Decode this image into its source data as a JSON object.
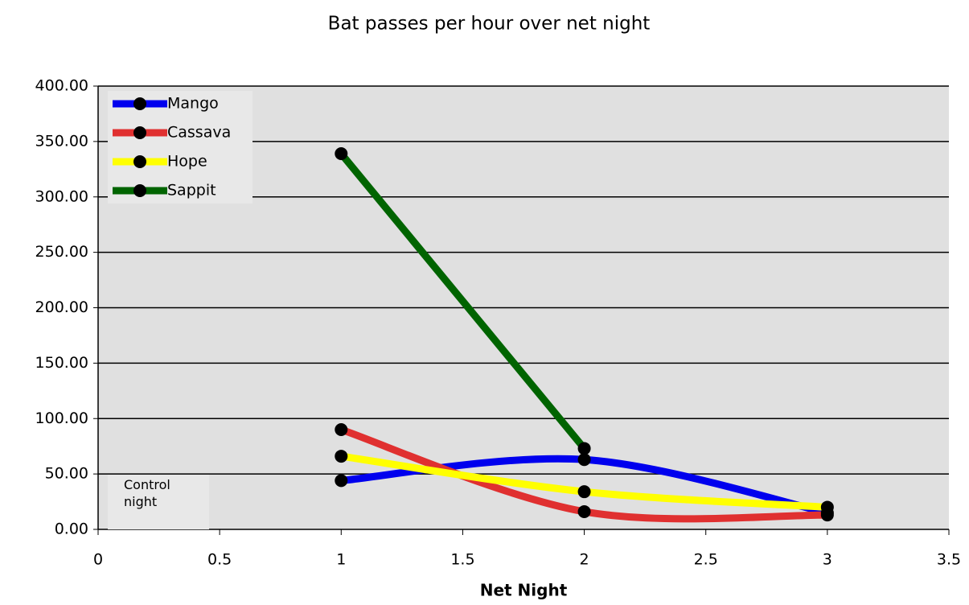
{
  "chart_data": {
    "type": "line",
    "title": "Bat passes per hour over net night",
    "x_label": "Net Night",
    "annotation": "Control night",
    "series": [
      {
        "name": "Mango",
        "color": "#0000ee",
        "x": [
          1,
          2,
          3
        ],
        "values": [
          44,
          63,
          15
        ]
      },
      {
        "name": "Cassava",
        "color": "#e03030",
        "x": [
          1,
          2,
          3
        ],
        "values": [
          90,
          16,
          13
        ]
      },
      {
        "name": "Hope",
        "color": "#ffff00",
        "x": [
          1,
          2,
          3
        ],
        "values": [
          66,
          34,
          20
        ]
      },
      {
        "name": "Sappit",
        "color": "#006400",
        "x": [
          1,
          2
        ],
        "values": [
          339,
          73
        ]
      }
    ],
    "xlim": [
      0,
      3.5
    ],
    "xticks": [
      0,
      0.5,
      1,
      1.5,
      2,
      2.5,
      3,
      3.5
    ],
    "ylim": [
      0,
      400
    ],
    "yticks": [
      {
        "value": 0,
        "label": "0.00"
      },
      {
        "value": 50,
        "label": "50.00"
      },
      {
        "value": 100,
        "label": "100.00"
      },
      {
        "value": 150,
        "label": "150.00"
      },
      {
        "value": 200,
        "label": "200.00"
      },
      {
        "value": 250,
        "label": "250.00"
      },
      {
        "value": 300,
        "label": "300.00"
      },
      {
        "value": 350,
        "label": "350.00"
      },
      {
        "value": 400,
        "label": "400.00"
      }
    ],
    "grid": true,
    "legend": "top-left",
    "smooth": true,
    "marker_color": "#000000",
    "background": "#e0e0e0"
  }
}
